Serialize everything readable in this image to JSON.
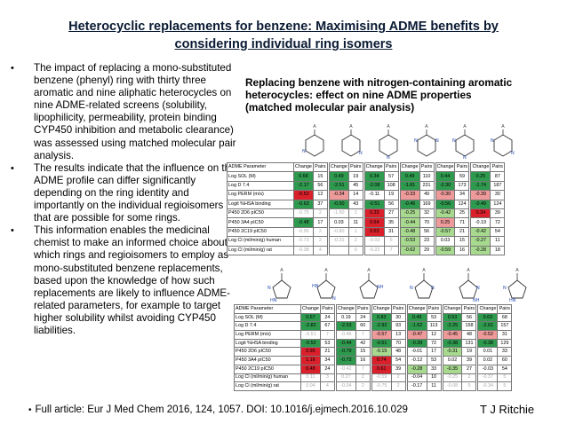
{
  "title": {
    "line1": "Heterocyclic replacements for benzene: Maximising ADME benefits by",
    "line2": "considering individual ring isomers"
  },
  "bullets": [
    "The impact of replacing a mono-substituted benzene (phenyl) ring with thirty three aromatic and nine aliphatic heterocycles on nine ADME-related screens (solubility, lipophilicity, permeability, protein binding CYP450 inhibition and metabolic clearance) was assessed using matched molecular pair analysis.",
    "The results indicate that the influence on the ADME profile can differ significantly depending on the ring identity and importantly on the individual regioisomers that are possible for some rings.",
    "This information enables the medicinal chemist to make an informed choice about which rings and regioisomers to employ as mono-substituted benzene replacements, based upon the knowledge of how such replacements are likely to influence ADME-related parameters, for example to target higher solubility whilst avoiding CYP450 liabilities."
  ],
  "bullet_symbol": "•",
  "subhead": {
    "line1": "Replacing benzene with nitrogen-containing aromatic",
    "line2": "heterocycles: effect on nine ADME properties",
    "line3": "(matched molecular pair analysis)"
  },
  "table1": {
    "header": {
      "param": "ADME Parameter",
      "change": "Change",
      "pairs": "Pairs"
    },
    "rows": [
      {
        "param": "Log SOL (M)",
        "cells": [
          [
            "0.68",
            "15",
            "g"
          ],
          [
            "0.49",
            "19",
            "g"
          ],
          [
            "0.34",
            "57",
            "g"
          ],
          [
            "0.49",
            "110",
            "g"
          ],
          [
            "0.44",
            "59",
            "g"
          ],
          [
            "0.25",
            "87",
            "g"
          ]
        ]
      },
      {
        "param": "Log D 7.4",
        "cells": [
          [
            "-2.17",
            "56",
            "g"
          ],
          [
            "-2.51",
            "45",
            "g"
          ],
          [
            "-2.08",
            "108",
            "g"
          ],
          [
            "-1.81",
            "231",
            "g"
          ],
          [
            "-2.30",
            "173",
            "g"
          ],
          [
            "-1.74",
            "187",
            "g"
          ]
        ]
      },
      {
        "param": "Log PERM (m/s)",
        "cells": [
          [
            "-0.52",
            "12",
            "r"
          ],
          [
            "-0.34",
            "14",
            "lr"
          ],
          [
            "-0.11",
            "19",
            "n"
          ],
          [
            "-0.33",
            "49",
            "lr"
          ],
          [
            "-0.30",
            "34",
            "lr"
          ],
          [
            "-0.39",
            "30",
            "lr"
          ]
        ]
      },
      {
        "param": "Logit %HSA binding",
        "cells": [
          [
            "-0.63",
            "37",
            "g"
          ],
          [
            "-0.50",
            "43",
            "g"
          ],
          [
            "-0.51",
            "56",
            "g"
          ],
          [
            "-0.46",
            "169",
            "g"
          ],
          [
            "-0.56",
            "124",
            "g"
          ],
          [
            "-0.49",
            "124",
            "g"
          ]
        ]
      },
      {
        "param": "P450 2D6 pIC50",
        "cells": [
          [
            "-0.75",
            "2",
            "f"
          ],
          [
            "-1.50",
            "1",
            "f"
          ],
          [
            "0.33",
            "27",
            "r"
          ],
          [
            "-0.25",
            "32",
            "lg"
          ],
          [
            "-0.42",
            "25",
            "lg"
          ],
          [
            "0.34",
            "39",
            "r"
          ]
        ]
      },
      {
        "param": "P450 3A4 pIC50",
        "cells": [
          [
            "-0.48",
            "17",
            "g"
          ],
          [
            "0.03",
            "11",
            "n"
          ],
          [
            "0.64",
            "35",
            "r"
          ],
          [
            "-0.44",
            "70",
            "lg"
          ],
          [
            "0.25",
            "71",
            "lr"
          ],
          [
            "-0.19",
            "72",
            "n"
          ]
        ]
      },
      {
        "param": "P450 2C19 pIC50",
        "cells": [
          [
            "-0.95",
            "2",
            "f"
          ],
          [
            "-0.80",
            "1",
            "f"
          ],
          [
            "0.63",
            "31",
            "r"
          ],
          [
            "-0.48",
            "56",
            "lg"
          ],
          [
            "-0.57",
            "21",
            "lg"
          ],
          [
            "-0.42",
            "54",
            "lg"
          ]
        ]
      },
      {
        "param": "Log Cl (ml/min/g) human",
        "cells": [
          [
            "-0.73",
            "2",
            "f"
          ],
          [
            "-0.31",
            "2",
            "f"
          ],
          [
            "-0.03",
            "5",
            "f"
          ],
          [
            "-0.53",
            "23",
            "lg"
          ],
          [
            "0.03",
            "15",
            "n"
          ],
          [
            "-0.27",
            "11",
            "lg"
          ]
        ]
      },
      {
        "param": "Log Cl (ml/min/g) rat",
        "cells": [
          [
            "-0.38",
            "4",
            "f"
          ],
          [
            "",
            "0",
            "f"
          ],
          [
            "-0.22",
            "7",
            "f"
          ],
          [
            "-0.62",
            "29",
            "lg"
          ],
          [
            "-0.59",
            "16",
            "lg"
          ],
          [
            "-0.28",
            "18",
            "lg"
          ]
        ]
      }
    ]
  },
  "table2": {
    "header": {
      "param": "ADME Parameter",
      "change": "Change",
      "pairs": "Pairs"
    },
    "rows": [
      {
        "param": "Log SOL (M)",
        "cells": [
          [
            "0.67",
            "24",
            "g"
          ],
          [
            "0.19",
            "24",
            "n"
          ],
          [
            "0.83",
            "30",
            "g"
          ],
          [
            "0.49",
            "53",
            "g"
          ],
          [
            "0.53",
            "56",
            "g"
          ],
          [
            "0.63",
            "68",
            "g"
          ]
        ]
      },
      {
        "param": "Log D 7.4",
        "cells": [
          [
            "-2.82",
            "67",
            "g"
          ],
          [
            "-2.53",
            "60",
            "g"
          ],
          [
            "-2.92",
            "93",
            "g"
          ],
          [
            "-1.62",
            "113",
            "g"
          ],
          [
            "-2.25",
            "158",
            "g"
          ],
          [
            "-2.61",
            "157",
            "g"
          ]
        ]
      },
      {
        "param": "Log PERM (m/s)",
        "cells": [
          [
            "-0.51",
            "7",
            "f"
          ],
          [
            "-0.46",
            "7",
            "f"
          ],
          [
            "-0.57",
            "13",
            "lr"
          ],
          [
            "-0.47",
            "12",
            "lr"
          ],
          [
            "-0.45",
            "48",
            "lr"
          ],
          [
            "-0.52",
            "31",
            "lr"
          ]
        ]
      },
      {
        "param": "Logit %HSA binding",
        "cells": [
          [
            "-0.52",
            "53",
            "g"
          ],
          [
            "-0.44",
            "42",
            "g"
          ],
          [
            "-0.51",
            "70",
            "g"
          ],
          [
            "-0.39",
            "72",
            "g"
          ],
          [
            "-0.38",
            "131",
            "g"
          ],
          [
            "-0.38",
            "129",
            "g"
          ]
        ]
      },
      {
        "param": "P450 2D6 pIC50",
        "cells": [
          [
            "0.95",
            "21",
            "r"
          ],
          [
            "-0.79",
            "15",
            "g"
          ],
          [
            "-0.15",
            "48",
            "lg"
          ],
          [
            "-0.01",
            "17",
            "n"
          ],
          [
            "-0.31",
            "19",
            "lg"
          ],
          [
            "0.01",
            "33",
            "n"
          ]
        ]
      },
      {
        "param": "P450 3A4 pIC50",
        "cells": [
          [
            "1.16",
            "34",
            "r"
          ],
          [
            "-0.73",
            "16",
            "g"
          ],
          [
            "0.74",
            "54",
            "r"
          ],
          [
            "-0.12",
            "53",
            "n"
          ],
          [
            "0.02",
            "39",
            "n"
          ],
          [
            "0.02",
            "60",
            "n"
          ]
        ]
      },
      {
        "param": "P450 2C19 pIC50",
        "cells": [
          [
            "0.48",
            "24",
            "r"
          ],
          [
            "-0.42",
            "7",
            "f"
          ],
          [
            "0.61",
            "39",
            "r"
          ],
          [
            "-0.28",
            "33",
            "lg"
          ],
          [
            "-0.35",
            "27",
            "lg"
          ],
          [
            "-0.03",
            "54",
            "n"
          ]
        ]
      },
      {
        "param": "Log Cl (ml/min/g) human",
        "cells": [
          [
            "0.11",
            "3",
            "f"
          ],
          [
            "0.27",
            "2",
            "f"
          ],
          [
            "-0.59",
            "2",
            "f"
          ],
          [
            "-0.04",
            "10",
            "n"
          ],
          [
            "-0.25",
            "2",
            "f"
          ],
          [
            "-0.37",
            "5",
            "f"
          ]
        ]
      },
      {
        "param": "Log Cl (ml/min/g) rat",
        "cells": [
          [
            "0.04",
            "4",
            "f"
          ],
          [
            "-0.04",
            "2",
            "f"
          ],
          [
            "-0.75",
            "2",
            "f"
          ],
          [
            "-0.17",
            "11",
            "n"
          ],
          [
            "-0.08",
            "5",
            "f"
          ],
          [
            "-0.34",
            "5",
            "f"
          ]
        ]
      }
    ]
  },
  "footer": "Full article: Eur J Med Chem 2016, 124, 1057. DOI: 10.1016/j.ejmech.2016.10.029",
  "author": "T J Ritchie",
  "colors": {
    "green": "#2e9a4e",
    "light_green": "#a7d98f",
    "red": "#d9202b",
    "light_red": "#ef9a9a"
  }
}
